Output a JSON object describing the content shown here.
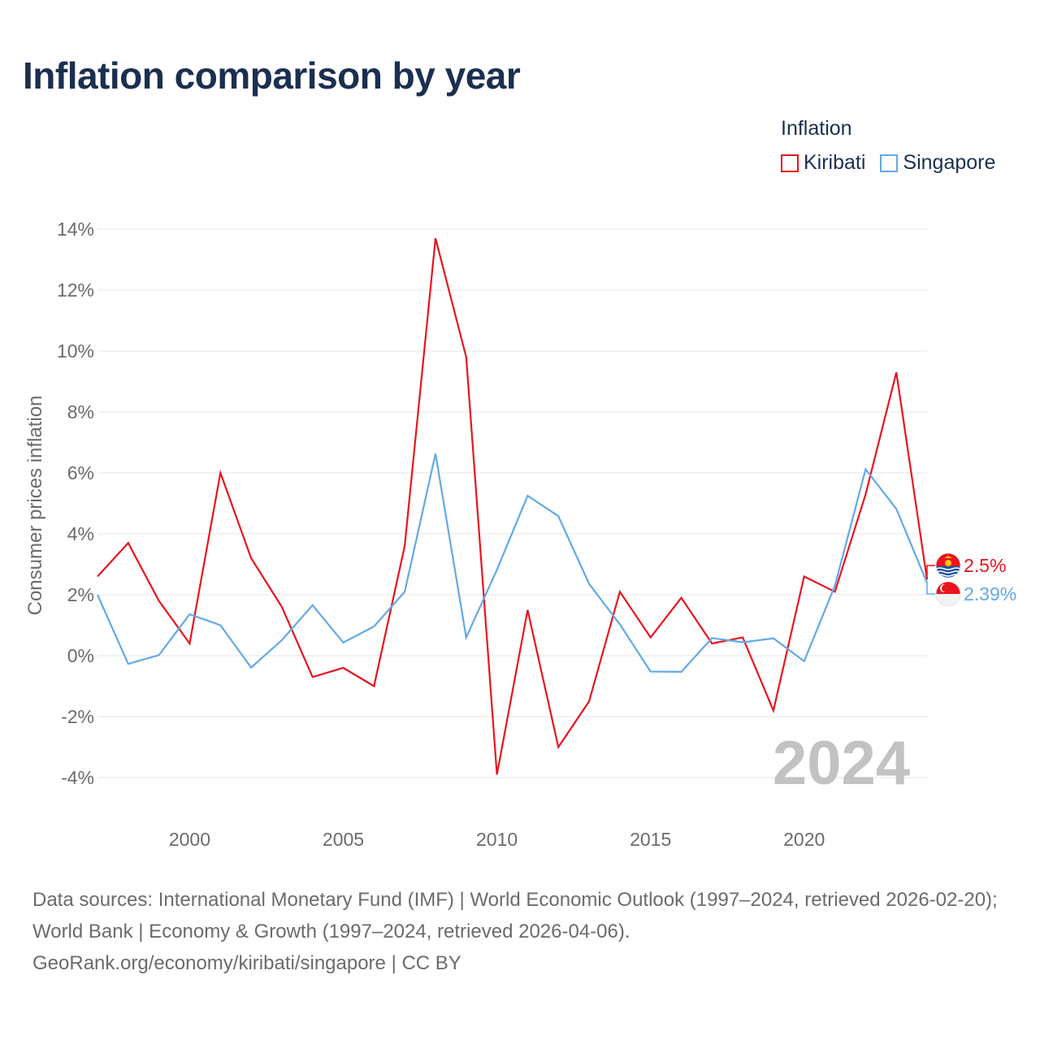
{
  "title": "Inflation comparison by year",
  "legend": {
    "title": "Inflation",
    "items": [
      {
        "label": "Kiribati",
        "color": "#e8141e"
      },
      {
        "label": "Singapore",
        "color": "#62a9e6"
      }
    ]
  },
  "chart_data": {
    "type": "line",
    "title": "Inflation comparison by year",
    "xlabel": "",
    "ylabel": "Consumer prices inflation",
    "xlim": [
      1997,
      2024
    ],
    "ylim": [
      -4,
      14
    ],
    "y_ticks": [
      14,
      12,
      10,
      8,
      6,
      4,
      2,
      0,
      -2,
      -4
    ],
    "y_tick_labels": [
      "14%",
      "12%",
      "10%",
      "8%",
      "6%",
      "4%",
      "2%",
      "0%",
      "-2%",
      "-4%"
    ],
    "x_ticks": [
      2000,
      2005,
      2010,
      2015,
      2020
    ],
    "x_tick_labels": [
      "2000",
      "2005",
      "2010",
      "2015",
      "2020"
    ],
    "grid": true,
    "watermark_year": "2024",
    "x": [
      1997,
      1998,
      1999,
      2000,
      2001,
      2002,
      2003,
      2004,
      2005,
      2006,
      2007,
      2008,
      2009,
      2010,
      2011,
      2012,
      2013,
      2014,
      2015,
      2016,
      2017,
      2018,
      2019,
      2020,
      2021,
      2022,
      2023,
      2024
    ],
    "series": [
      {
        "name": "Kiribati",
        "color": "#e8141e",
        "end_label": "2.5%",
        "values": [
          2.6,
          3.7,
          1.8,
          0.4,
          6.0,
          3.2,
          1.6,
          -0.7,
          -0.4,
          -1.0,
          3.6,
          13.7,
          9.8,
          -3.9,
          1.5,
          -3.0,
          -1.5,
          2.1,
          0.6,
          1.9,
          0.4,
          0.6,
          -1.8,
          2.6,
          2.1,
          5.3,
          9.3,
          2.5
        ]
      },
      {
        "name": "Singapore",
        "color": "#62a9e6",
        "end_label": "2.39%",
        "values": [
          2.0,
          -0.27,
          0.02,
          1.36,
          1.0,
          -0.39,
          0.51,
          1.66,
          0.43,
          0.96,
          2.1,
          6.63,
          0.6,
          2.82,
          5.25,
          4.58,
          2.36,
          1.03,
          -0.52,
          -0.53,
          0.58,
          0.44,
          0.57,
          -0.18,
          2.3,
          6.12,
          4.82,
          2.39
        ]
      }
    ]
  },
  "footer": {
    "line1": "Data sources: International Monetary Fund (IMF) | World Economic Outlook (1997–2024, retrieved 2026-02-20); World Bank | Economy & Growth (1997–2024, retrieved 2026-04-06).",
    "line2": "GeoRank.org/economy/kiribati/singapore | CC BY"
  }
}
